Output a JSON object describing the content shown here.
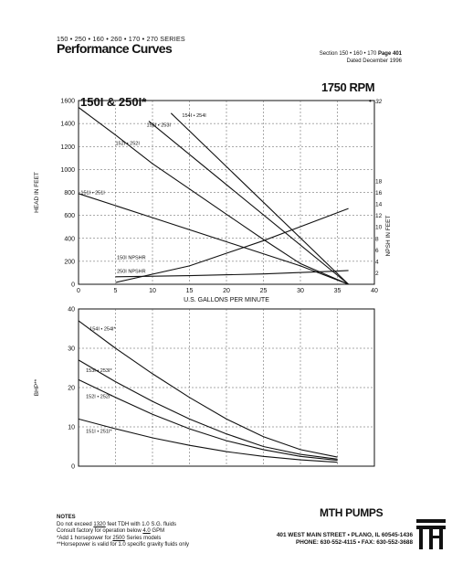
{
  "header": {
    "series": "150 • 250 • 160 • 260 • 170 • 270 SERIES",
    "title": "Performance Curves",
    "section_prefix": "Section 150 • 160 • 170",
    "page_label": "Page 401",
    "dated": "Dated December 1996"
  },
  "rpm_label": "1750 RPM",
  "chart_data": [
    {
      "type": "line",
      "title": "150I & 250I*",
      "xlabel": "U.S. GALLONS PER MINUTE",
      "ylabel": "HEAD IN FEET",
      "y2label": "NPSH IN FEET",
      "xlim": [
        0,
        40
      ],
      "ylim": [
        0,
        1600
      ],
      "y2lim": [
        0,
        18
      ],
      "x_ticks": [
        0,
        5,
        10,
        15,
        20,
        25,
        30,
        35,
        40
      ],
      "y_ticks": [
        0,
        200,
        400,
        600,
        800,
        1000,
        1200,
        1400,
        1600
      ],
      "y2_ticks": [
        2,
        4,
        6,
        8,
        10,
        12,
        14,
        16,
        18
      ],
      "y2_extra_label": "32",
      "grid": true,
      "series": [
        {
          "name": "154I • 254I",
          "x": [
            12.5,
            36.5
          ],
          "y": [
            1490,
            0
          ],
          "label_at": [
            14,
            1455
          ]
        },
        {
          "name": "153I • 253I",
          "x": [
            9.5,
            36.5
          ],
          "y": [
            1420,
            0
          ],
          "label_at": [
            9.2,
            1375
          ]
        },
        {
          "name": "152I • 252I",
          "x": [
            0,
            5,
            10,
            15,
            20,
            25,
            30,
            36.5
          ],
          "y": [
            1540,
            1300,
            1050,
            830,
            610,
            390,
            180,
            0
          ],
          "label_at": [
            5,
            1215
          ]
        },
        {
          "name": "151I • 251I",
          "x": [
            0,
            10,
            20,
            30,
            36.5
          ],
          "y": [
            790,
            580,
            370,
            160,
            0
          ],
          "label_at": [
            0.3,
            785
          ]
        },
        {
          "name": "150I NPSHR",
          "x": [
            5,
            15,
            25,
            36.5
          ],
          "y2": [
            0.3,
            3.2,
            7.6,
            13.2
          ],
          "label_at": [
            5.2,
            220
          ]
        },
        {
          "name": "250I NPSHR",
          "x": [
            5,
            15,
            25,
            35,
            36.5
          ],
          "y2": [
            1.3,
            1.5,
            1.8,
            2.3,
            2.4
          ],
          "label_at": [
            5.2,
            100
          ]
        }
      ]
    },
    {
      "type": "line",
      "ylabel": "BHP**",
      "xlim": [
        0,
        40
      ],
      "ylim": [
        0,
        40
      ],
      "y_ticks": [
        0,
        10,
        20,
        30,
        40
      ],
      "grid": true,
      "series": [
        {
          "name": "154I • 254I*",
          "x": [
            0,
            5,
            10,
            15,
            20,
            25,
            30,
            35
          ],
          "y": [
            37,
            30,
            23.5,
            17.5,
            12,
            7.5,
            4.2,
            2.3
          ],
          "label_at": [
            1.5,
            34.5
          ]
        },
        {
          "name": "153I • 253I*",
          "x": [
            0,
            5,
            10,
            15,
            20,
            25,
            30,
            35
          ],
          "y": [
            27,
            21.5,
            16.5,
            12,
            8.2,
            5,
            3,
            1.8
          ],
          "label_at": [
            1,
            24
          ]
        },
        {
          "name": "152I • 252I*",
          "x": [
            0,
            5,
            10,
            15,
            20,
            25,
            30,
            35
          ],
          "y": [
            22,
            17.5,
            13.2,
            9.5,
            6.5,
            4.2,
            2.5,
            1.5
          ],
          "label_at": [
            1,
            17.3
          ]
        },
        {
          "name": "151I • 251I*",
          "x": [
            0,
            5,
            10,
            15,
            20,
            25,
            30,
            35
          ],
          "y": [
            12,
            9.5,
            7.2,
            5.3,
            3.7,
            2.5,
            1.6,
            1
          ],
          "label_at": [
            1,
            8.5
          ]
        }
      ]
    }
  ],
  "notes": {
    "heading": "NOTES",
    "line1a": "Do not exceed",
    "line1b": "1320",
    "line1c": "feet TDH with 1.0 S.G. fluids",
    "line2a": "Consult factory for operation below",
    "line2b": "4.0",
    "line2c": "GPM",
    "line3a": "*Add 1 horsepower for",
    "line3b": "2500",
    "line3c": "Series models",
    "line4": "**Horsepower is valid for 1.0 specific gravity fluids only"
  },
  "footer": {
    "brand": "MTH PUMPS",
    "address": "401 WEST MAIN STREET • PLANO, IL 60545-1436",
    "phone": "PHONE: 630-552-4115 • FAX: 630-552-3688",
    "logo_icon": "mth-logo-icon"
  }
}
